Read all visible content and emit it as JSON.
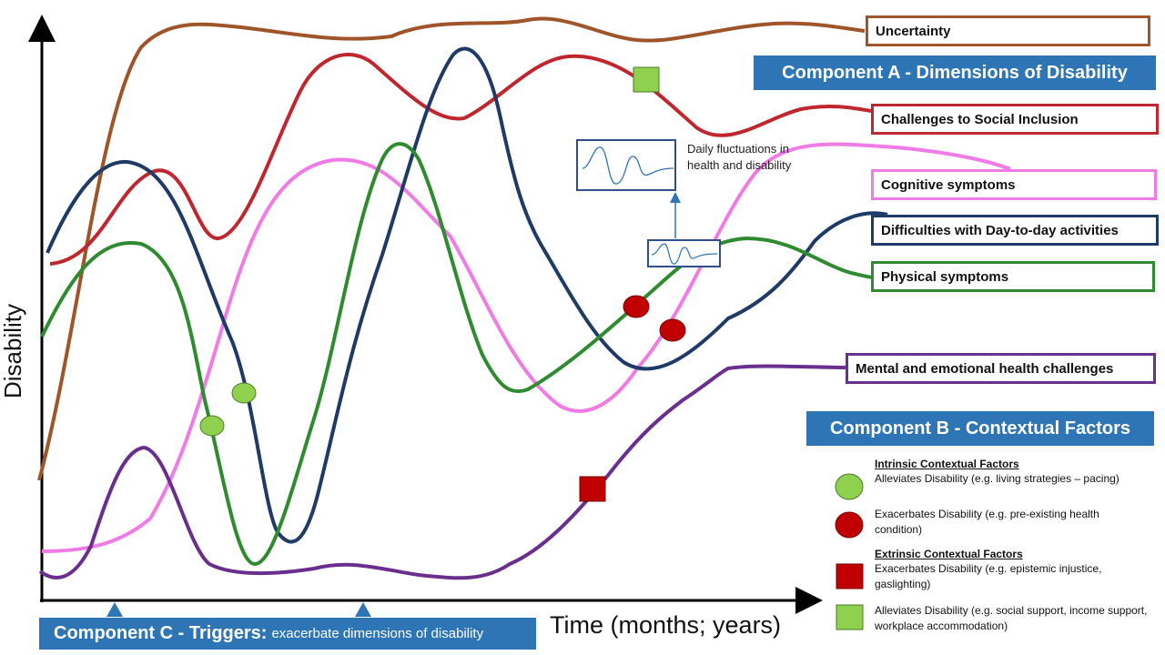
{
  "axes": {
    "y_label": "Disability",
    "x_label": "Time (months; years)"
  },
  "curves": {
    "uncertainty": {
      "label": "Uncertainty",
      "color": "#a0542a"
    },
    "social": {
      "label": "Challenges to Social Inclusion",
      "color": "#c0262d"
    },
    "cognitive": {
      "label": "Cognitive symptoms",
      "color": "#f07ae6"
    },
    "daily": {
      "label": "Difficulties with Day-to-day activities",
      "color": "#1e3a66"
    },
    "physical": {
      "label": "Physical symptoms",
      "color": "#2f8b2f"
    },
    "mental": {
      "label": "Mental and emotional health challenges",
      "color": "#6a2e8e"
    }
  },
  "components": {
    "a": "Component A - Dimensions of Disability",
    "b": "Component B - Contextual Factors",
    "c_title": "Component C - Triggers:",
    "c_sub": "exacerbate dimensions of disability",
    "accent": "#2e75b6"
  },
  "daily_fluctuations": "Daily fluctuations in health and disability",
  "legend": {
    "intrinsic_heading": "Intrinsic Contextual Factors",
    "intrinsic_alleviates": "Alleviates Disability (e.g. living strategies – pacing)",
    "intrinsic_exacerbates": "Exacerbates Disability (e.g. pre-existing health condition)",
    "extrinsic_heading": "Extrinsic Contextual Factors",
    "extrinsic_exacerbates": "Exacerbates Disability (e.g. epistemic injustice, gaslighting)",
    "extrinsic_alleviates": "Alleviates Disability (e.g. social support, income support, workplace accommodation)",
    "green": "#8fd14f",
    "red": "#c00000"
  }
}
